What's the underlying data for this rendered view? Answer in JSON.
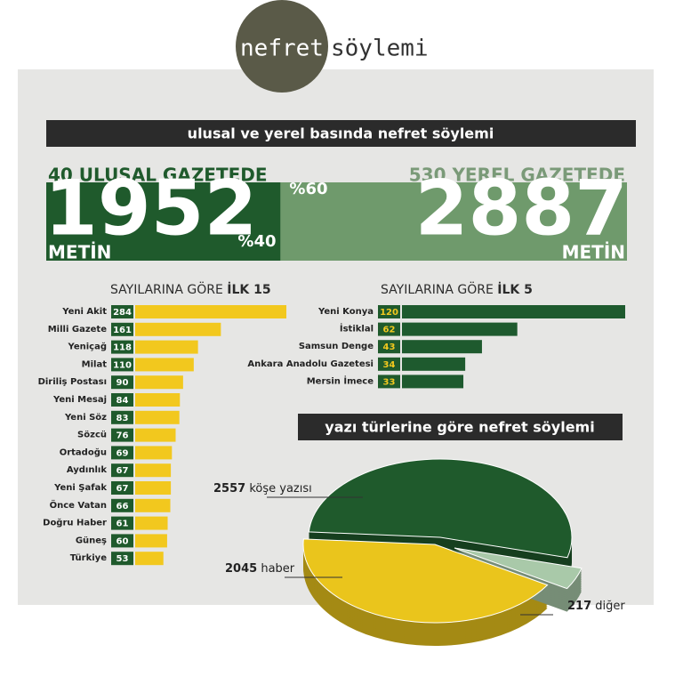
{
  "logo": {
    "left": "nefret",
    "right": "söylemi"
  },
  "banner": "ulusal ve yerel basında nefret söylemi",
  "national": {
    "label": "40 ULUSAL GAZETEDE",
    "count": 1952,
    "unit": "METİN",
    "share": "%40"
  },
  "local": {
    "label": "530 YEREL GAZETEDE",
    "count": 2887,
    "unit": "METİN",
    "share": "%60"
  },
  "chart_data": [
    {
      "type": "bar",
      "title": "SAYILARINA GÖRE",
      "title_emphasis": "İLK 15",
      "color": "#f2c81e",
      "categories": [
        "Yeni Akit",
        "Milli Gazete",
        "Yeniçağ",
        "Milat",
        "Diriliş Postası",
        "Yeni Mesaj",
        "Yeni Söz",
        "Sözcü",
        "Ortadoğu",
        "Aydınlık",
        "Yeni Şafak",
        "Önce Vatan",
        "Doğru Haber",
        "Güneş",
        "Türkiye"
      ],
      "values": [
        284,
        161,
        118,
        110,
        90,
        84,
        83,
        76,
        69,
        67,
        67,
        66,
        61,
        60,
        53
      ]
    },
    {
      "type": "bar",
      "title": "SAYILARINA GÖRE",
      "title_emphasis": "İLK 5",
      "color": "#1e5a2e",
      "categories": [
        "Yeni Konya",
        "İstiklal",
        "Samsun Denge",
        "Ankara Anadolu Gazetesi",
        "Mersin İmece"
      ],
      "values": [
        120,
        62,
        43,
        34,
        33
      ]
    },
    {
      "type": "pie",
      "title": "yazı türlerine göre nefret söylemi",
      "categories": [
        "köşe yazısı",
        "haber",
        "diğer"
      ],
      "values": [
        2557,
        2045,
        217
      ],
      "colors": [
        "#1f5a2c",
        "#eac51c",
        "#a9c9a9"
      ]
    }
  ]
}
